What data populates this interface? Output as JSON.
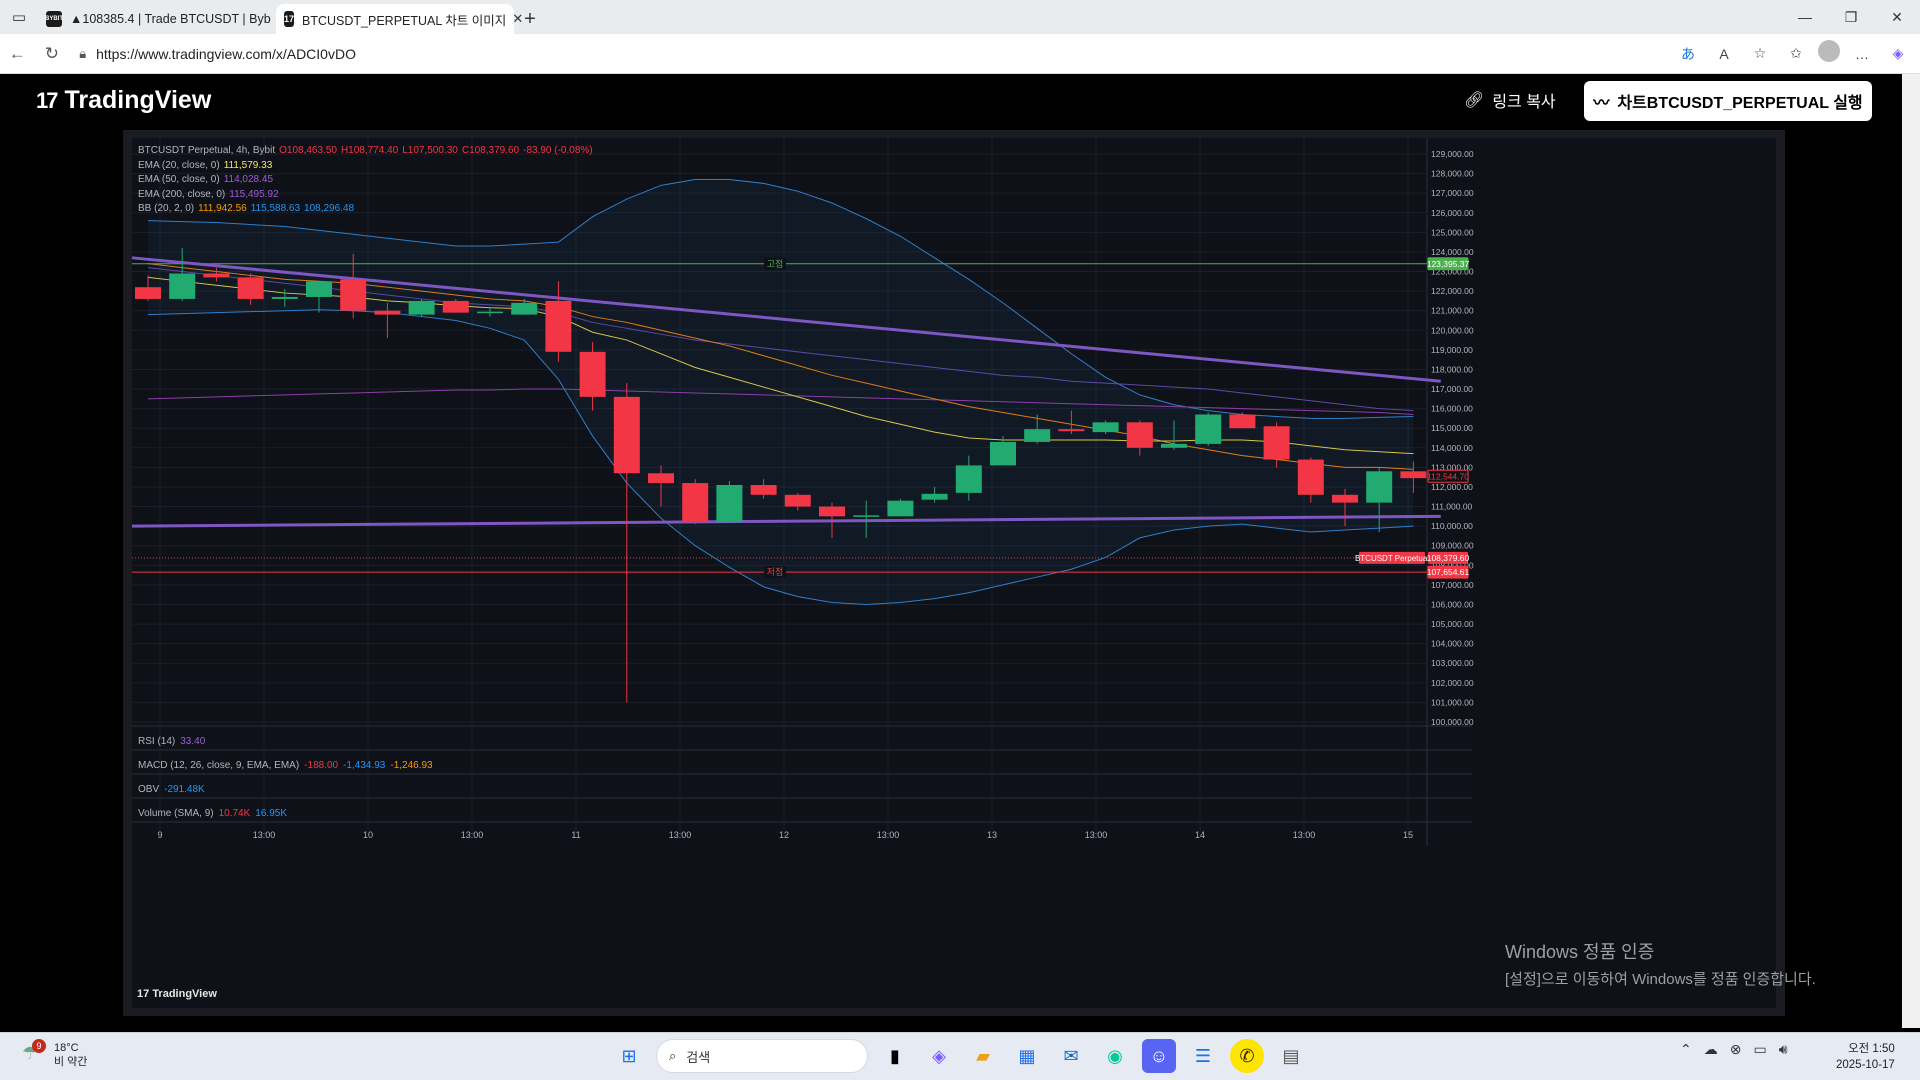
{
  "browser": {
    "tabs": [
      {
        "title": "▲108385.4 | Trade BTCUSDT | Byb",
        "favicon": "BYBIT",
        "active": false
      },
      {
        "title": "BTCUSDT_PERPETUAL 차트 이미지",
        "favicon": "TV",
        "active": true
      }
    ],
    "url": "https://www.tradingview.com/x/ADCI0vDO"
  },
  "page": {
    "logo": "TradingView",
    "copy_link": "링크 복사",
    "run_button": "차트BTCUSDT_PERPETUAL 실행",
    "footer_logo": "TradingView"
  },
  "legend": {
    "symbol": "BTCUSDT Perpetual, 4h, Bybit",
    "open": "O108,463.50",
    "high": "H108,774.40",
    "low": "L107,500.30",
    "close": "C108,379.60",
    "change": "-83.90 (-0.08%)",
    "ema20_label": "EMA (20, close, 0)",
    "ema20_value": "111,579.33",
    "ema50_label": "EMA (50, close, 0)",
    "ema50_value": "114,028.45",
    "ema200_label": "EMA (200, close, 0)",
    "ema200_value": "115,495.92",
    "bb_label": "BB (20, 2, 0)",
    "bb_basis": "111,942.56",
    "bb_upper": "115,588.63",
    "bb_lower": "108,296.48"
  },
  "panes": {
    "rsi_label": "RSI (14)",
    "rsi_value": "33.40",
    "macd_label": "MACD (12, 26, close, 9, EMA, EMA)",
    "macd_1": "-188.00",
    "macd_2": "-1,434.93",
    "macd_3": "-1,246.93",
    "obv_label": "OBV",
    "obv_value": "-291.48K",
    "vol_label": "Volume (SMA, 9)",
    "vol_1": "10.74K",
    "vol_2": "16.95K"
  },
  "chart_data": {
    "type": "candlestick",
    "symbol": "BTCUSDT Perpetual",
    "interval": "4h",
    "exchange": "Bybit",
    "ylim": [
      100000,
      129000
    ],
    "y_ticks": [
      100000,
      101000,
      102000,
      103000,
      104000,
      105000,
      106000,
      107000,
      108000,
      109000,
      110000,
      111000,
      112000,
      113000,
      114000,
      115000,
      116000,
      117000,
      118000,
      119000,
      120000,
      121000,
      122000,
      123000,
      124000,
      125000,
      126000,
      127000,
      128000,
      129000
    ],
    "x_ticks": [
      "9",
      "13:00",
      "10",
      "13:00",
      "11",
      "13:00",
      "12",
      "13:00",
      "13",
      "13:00",
      "14",
      "13:00",
      "15"
    ],
    "candles": [
      {
        "o": 122200,
        "h": 122800,
        "l": 121500,
        "c": 121600
      },
      {
        "o": 121600,
        "h": 124200,
        "l": 121500,
        "c": 122900
      },
      {
        "o": 122900,
        "h": 123200,
        "l": 122500,
        "c": 122700
      },
      {
        "o": 122700,
        "h": 122900,
        "l": 121300,
        "c": 121600
      },
      {
        "o": 121600,
        "h": 122100,
        "l": 121200,
        "c": 121700
      },
      {
        "o": 121700,
        "h": 122500,
        "l": 120900,
        "c": 122500
      },
      {
        "o": 122600,
        "h": 123900,
        "l": 120600,
        "c": 121000
      },
      {
        "o": 121000,
        "h": 121400,
        "l": 119600,
        "c": 120800
      },
      {
        "o": 120800,
        "h": 121600,
        "l": 120700,
        "c": 121500
      },
      {
        "o": 121500,
        "h": 121600,
        "l": 120900,
        "c": 120900
      },
      {
        "o": 120900,
        "h": 121200,
        "l": 120700,
        "c": 120950
      },
      {
        "o": 120800,
        "h": 121600,
        "l": 120800,
        "c": 121400
      },
      {
        "o": 121500,
        "h": 122500,
        "l": 118400,
        "c": 118900
      },
      {
        "o": 118900,
        "h": 119400,
        "l": 115900,
        "c": 116600
      },
      {
        "o": 116600,
        "h": 117300,
        "l": 101000,
        "c": 112700
      },
      {
        "o": 112700,
        "h": 113100,
        "l": 111000,
        "c": 112200
      },
      {
        "o": 112200,
        "h": 112400,
        "l": 110100,
        "c": 110200
      },
      {
        "o": 110200,
        "h": 112300,
        "l": 110200,
        "c": 112100
      },
      {
        "o": 112100,
        "h": 112400,
        "l": 111400,
        "c": 111600
      },
      {
        "o": 111600,
        "h": 111700,
        "l": 110800,
        "c": 111000
      },
      {
        "o": 111000,
        "h": 111200,
        "l": 109400,
        "c": 110500
      },
      {
        "o": 110500,
        "h": 111300,
        "l": 109400,
        "c": 110550
      },
      {
        "o": 110500,
        "h": 111400,
        "l": 110500,
        "c": 111300
      },
      {
        "o": 111350,
        "h": 112000,
        "l": 111200,
        "c": 111650
      },
      {
        "o": 111700,
        "h": 113600,
        "l": 111300,
        "c": 113100
      },
      {
        "o": 113100,
        "h": 114600,
        "l": 113100,
        "c": 114300
      },
      {
        "o": 114300,
        "h": 115700,
        "l": 114200,
        "c": 114950
      },
      {
        "o": 114950,
        "h": 115900,
        "l": 114700,
        "c": 114850
      },
      {
        "o": 114800,
        "h": 115400,
        "l": 114700,
        "c": 115300
      },
      {
        "o": 115300,
        "h": 115400,
        "l": 113600,
        "c": 114000
      },
      {
        "o": 114000,
        "h": 115400,
        "l": 113900,
        "c": 114200
      },
      {
        "o": 114200,
        "h": 115800,
        "l": 114100,
        "c": 115700
      },
      {
        "o": 115700,
        "h": 115800,
        "l": 115000,
        "c": 115000
      },
      {
        "o": 115100,
        "h": 115300,
        "l": 113000,
        "c": 113400
      },
      {
        "o": 113400,
        "h": 113500,
        "l": 111200,
        "c": 111600
      },
      {
        "o": 111600,
        "h": 111900,
        "l": 110000,
        "c": 111200
      },
      {
        "o": 111200,
        "h": 113000,
        "l": 109700,
        "c": 112800
      },
      {
        "o": 112800,
        "h": 113300,
        "l": 111700,
        "c": 112450
      }
    ],
    "hlines": [
      {
        "price": 123395.37,
        "label": "고점",
        "color": "#4caf50"
      },
      {
        "price": 107654.61,
        "label": "저점",
        "color": "#f23645"
      }
    ],
    "current_price": {
      "value": "108,379.60",
      "label": "BTCUSDT Perpetual",
      "color": "#f23645"
    },
    "price_badges": [
      {
        "price": 123395.37,
        "text": "123,395.37",
        "color": "#4caf50"
      },
      {
        "price": 112544.7,
        "text": "112,544.70",
        "color": "#f23645",
        "outline": true
      },
      {
        "price": 107654.61,
        "text": "107,654.61",
        "color": "#f23645"
      }
    ],
    "trendlines": [
      {
        "p1": [
          0,
          123700
        ],
        "p2": [
          37.8,
          117400
        ],
        "color": "#7e57c2"
      },
      {
        "p1": [
          0,
          110000
        ],
        "p2": [
          37.8,
          110500
        ],
        "color": "#7e57c2"
      }
    ],
    "ema20": [
      122700,
      122500,
      122300,
      122100,
      121900,
      121800,
      121700,
      121500,
      121400,
      121250,
      121150,
      121100,
      120700,
      119900,
      119500,
      118800,
      118100,
      117600,
      117100,
      116600,
      116100,
      115600,
      115200,
      114800,
      114500,
      114400,
      114400,
      114400,
      114400,
      114350,
      114350,
      114400,
      114400,
      114300,
      114100,
      113900,
      113800,
      113700
    ],
    "ema50": [
      123400,
      123200,
      123000,
      122800,
      122600,
      122500,
      122400,
      122200,
      122000,
      121800,
      121600,
      121500,
      121200,
      120700,
      120400,
      120000,
      119600,
      119200,
      118700,
      118200,
      117700,
      117300,
      116900,
      116500,
      116100,
      115800,
      115500,
      115200,
      114900,
      114600,
      114200,
      113900,
      113600,
      113400,
      113200,
      113000,
      113000,
      112900
    ],
    "ema200": [
      116500,
      116550,
      116600,
      116650,
      116700,
      116750,
      116800,
      116850,
      116900,
      116950,
      116950,
      117000,
      117000,
      116950,
      116900,
      116850,
      116800,
      116750,
      116700,
      116650,
      116600,
      116550,
      116500,
      116450,
      116400,
      116350,
      116300,
      116250,
      116200,
      116150,
      116100,
      116050,
      116000,
      115950,
      115900,
      115850,
      115800,
      115700
    ],
    "ema_slow": [
      123200,
      123000,
      122800,
      122600,
      122400,
      122200,
      122000,
      121800,
      121600,
      121400,
      121300,
      121200,
      120900,
      120400,
      120100,
      119800,
      119500,
      119300,
      119100,
      118900,
      118700,
      118500,
      118300,
      118100,
      117900,
      117700,
      117600,
      117400,
      117300,
      117200,
      117100,
      117000,
      116800,
      116600,
      116400,
      116200,
      116000,
      115900
    ],
    "bb_upper": [
      125600,
      125550,
      125500,
      125400,
      125300,
      125100,
      124900,
      124700,
      124500,
      124300,
      124300,
      124400,
      124500,
      125800,
      126700,
      127400,
      127700,
      127700,
      127500,
      127100,
      126500,
      125700,
      124800,
      123700,
      122600,
      121400,
      120100,
      118800,
      117600,
      116700,
      116200,
      115900,
      115700,
      115600,
      115500,
      115500,
      115550,
      115600
    ],
    "bb_lower": [
      120800,
      120850,
      120900,
      120950,
      121000,
      121050,
      121000,
      120900,
      120700,
      120500,
      120100,
      119500,
      117500,
      114600,
      112200,
      110400,
      109000,
      107900,
      106900,
      106400,
      106100,
      106000,
      106100,
      106300,
      106600,
      107000,
      107400,
      107800,
      108400,
      109400,
      109800,
      110000,
      110100,
      109900,
      109700,
      109800,
      109900,
      110000
    ]
  },
  "windows": {
    "activation_title": "Windows 정품 인증",
    "activation_sub": "[설정]으로 이동하여 Windows를 정품 인증합니다."
  },
  "taskbar": {
    "weather_badge": "9",
    "temp": "18°C",
    "condition": "비 약간",
    "search_placeholder": "검색",
    "time": "오전 1:50",
    "date": "2025-10-17"
  }
}
